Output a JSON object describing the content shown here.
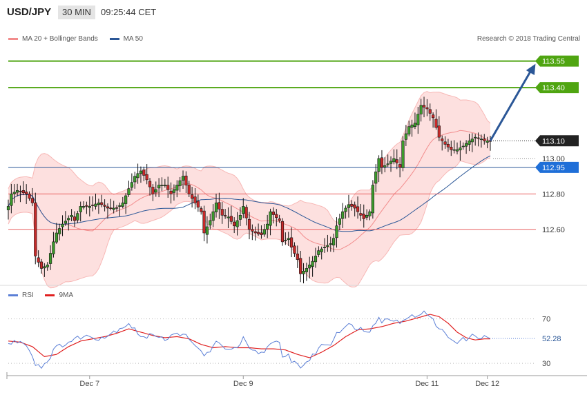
{
  "header": {
    "symbol": "USD/JPY",
    "timeframe": "30 MIN",
    "time": "09:25:44 CET"
  },
  "legend": [
    {
      "label": "MA 20 + Bollinger Bands",
      "color": "#f28c8c"
    },
    {
      "label": "MA 50",
      "color": "#2b5797"
    }
  ],
  "copyright": "Research © 2018 Trading Central",
  "chart_data": {
    "type": "candlestick",
    "ylim": [
      112.3,
      113.63
    ],
    "x_ticks": [
      {
        "label": "Dec 7",
        "index": 27
      },
      {
        "label": "Dec 9",
        "index": 78
      },
      {
        "label": "Dec 11",
        "index": 139
      },
      {
        "label": "Dec 12",
        "index": 159
      }
    ],
    "levels": [
      {
        "value": 113.55,
        "label": "113.55",
        "color": "#4fa511",
        "style": "target"
      },
      {
        "value": 113.4,
        "label": "113.40",
        "color": "#4fa511",
        "style": "target"
      },
      {
        "value": 113.1,
        "label": "113.10",
        "color": "#222222",
        "style": "current"
      },
      {
        "value": 113.0,
        "label": "113.00",
        "color": "#777777",
        "style": "plain"
      },
      {
        "value": 112.95,
        "label": "112.95",
        "color": "#1f6fd8",
        "style": "pivot"
      },
      {
        "value": 112.8,
        "label": "112.80",
        "color": "#e85c5c",
        "style": "support"
      },
      {
        "value": 112.6,
        "label": "112.60",
        "color": "#e85c5c",
        "style": "support"
      }
    ],
    "arrow": {
      "from_index": 160,
      "from_value": 113.1,
      "to_index": 175,
      "to_value": 113.55,
      "color": "#2b5797"
    },
    "key_closes": [
      [
        0,
        112.73
      ],
      [
        1,
        112.8
      ],
      [
        3,
        112.82
      ],
      [
        6,
        112.8
      ],
      [
        8,
        112.75
      ],
      [
        9,
        112.45
      ],
      [
        11,
        112.38
      ],
      [
        13,
        112.4
      ],
      [
        15,
        112.53
      ],
      [
        16,
        112.58
      ],
      [
        18,
        112.63
      ],
      [
        21,
        112.68
      ],
      [
        22,
        112.65
      ],
      [
        24,
        112.73
      ],
      [
        27,
        112.73
      ],
      [
        30,
        112.75
      ],
      [
        33,
        112.72
      ],
      [
        36,
        112.72
      ],
      [
        38,
        112.75
      ],
      [
        40,
        112.83
      ],
      [
        42,
        112.9
      ],
      [
        44,
        112.93
      ],
      [
        46,
        112.88
      ],
      [
        48,
        112.8
      ],
      [
        50,
        112.85
      ],
      [
        52,
        112.85
      ],
      [
        54,
        112.8
      ],
      [
        56,
        112.85
      ],
      [
        58,
        112.9
      ],
      [
        60,
        112.8
      ],
      [
        62,
        112.75
      ],
      [
        64,
        112.7
      ],
      [
        65,
        112.58
      ],
      [
        67,
        112.65
      ],
      [
        69,
        112.75
      ],
      [
        71,
        112.68
      ],
      [
        73,
        112.67
      ],
      [
        75,
        112.62
      ],
      [
        77,
        112.68
      ],
      [
        78,
        112.73
      ],
      [
        80,
        112.6
      ],
      [
        82,
        112.58
      ],
      [
        84,
        112.57
      ],
      [
        86,
        112.63
      ],
      [
        87,
        112.7
      ],
      [
        90,
        112.65
      ],
      [
        91,
        112.53
      ],
      [
        93,
        112.55
      ],
      [
        94,
        112.5
      ],
      [
        96,
        112.43
      ],
      [
        97,
        112.35
      ],
      [
        99,
        112.38
      ],
      [
        101,
        112.42
      ],
      [
        103,
        112.48
      ],
      [
        105,
        112.5
      ],
      [
        107,
        112.52
      ],
      [
        108,
        112.55
      ],
      [
        109,
        112.62
      ],
      [
        111,
        112.7
      ],
      [
        113,
        112.74
      ],
      [
        115,
        112.72
      ],
      [
        117,
        112.68
      ],
      [
        118,
        112.66
      ],
      [
        120,
        112.7
      ],
      [
        121,
        112.85
      ],
      [
        123,
        113.0
      ],
      [
        124,
        112.95
      ],
      [
        126,
        112.97
      ],
      [
        128,
        113.0
      ],
      [
        130,
        112.95
      ],
      [
        131,
        113.1
      ],
      [
        133,
        113.18
      ],
      [
        135,
        113.2
      ],
      [
        136,
        113.25
      ],
      [
        137,
        113.3
      ],
      [
        139,
        113.28
      ],
      [
        141,
        113.23
      ],
      [
        143,
        113.12
      ],
      [
        145,
        113.08
      ],
      [
        147,
        113.05
      ],
      [
        149,
        113.05
      ],
      [
        151,
        113.07
      ],
      [
        153,
        113.1
      ],
      [
        155,
        113.12
      ],
      [
        157,
        113.11
      ],
      [
        158,
        113.1
      ],
      [
        160,
        113.1
      ]
    ],
    "rsi": {
      "ylim": [
        22,
        84
      ],
      "levels": [
        70,
        30
      ],
      "current": 52.28,
      "current_label": "52.28",
      "series": [
        {
          "name": "RSI",
          "color": "#5b7fd6"
        },
        {
          "name": "9MA",
          "color": "#e02020"
        }
      ],
      "rsi_key": [
        [
          0,
          47
        ],
        [
          3,
          50
        ],
        [
          6,
          48
        ],
        [
          9,
          30
        ],
        [
          11,
          27
        ],
        [
          13,
          32
        ],
        [
          15,
          42
        ],
        [
          18,
          47
        ],
        [
          21,
          50
        ],
        [
          24,
          54
        ],
        [
          27,
          54
        ],
        [
          30,
          53
        ],
        [
          33,
          55
        ],
        [
          36,
          60
        ],
        [
          38,
          63
        ],
        [
          40,
          66
        ],
        [
          42,
          60
        ],
        [
          44,
          55
        ],
        [
          46,
          52
        ],
        [
          48,
          57
        ],
        [
          50,
          55
        ],
        [
          52,
          52
        ],
        [
          54,
          54
        ],
        [
          56,
          56
        ],
        [
          58,
          58
        ],
        [
          60,
          50
        ],
        [
          62,
          45
        ],
        [
          64,
          42
        ],
        [
          65,
          36
        ],
        [
          67,
          42
        ],
        [
          69,
          48
        ],
        [
          71,
          45
        ],
        [
          73,
          44
        ],
        [
          75,
          42
        ],
        [
          77,
          47
        ],
        [
          78,
          52
        ],
        [
          80,
          42
        ],
        [
          82,
          40
        ],
        [
          84,
          39
        ],
        [
          86,
          44
        ],
        [
          87,
          50
        ],
        [
          90,
          47
        ],
        [
          91,
          34
        ],
        [
          93,
          37
        ],
        [
          94,
          33
        ],
        [
          96,
          29
        ],
        [
          97,
          27
        ],
        [
          99,
          31
        ],
        [
          101,
          36
        ],
        [
          103,
          44
        ],
        [
          105,
          47
        ],
        [
          107,
          48
        ],
        [
          108,
          52
        ],
        [
          109,
          58
        ],
        [
          111,
          62
        ],
        [
          113,
          64
        ],
        [
          115,
          63
        ],
        [
          117,
          61
        ],
        [
          118,
          59
        ],
        [
          120,
          60
        ],
        [
          121,
          66
        ],
        [
          123,
          71
        ],
        [
          124,
          68
        ],
        [
          126,
          69
        ],
        [
          128,
          70
        ],
        [
          130,
          66
        ],
        [
          131,
          71
        ],
        [
          133,
          72
        ],
        [
          135,
          72
        ],
        [
          136,
          74
        ],
        [
          137,
          76
        ],
        [
          139,
          74
        ],
        [
          141,
          68
        ],
        [
          143,
          62
        ],
        [
          145,
          56
        ],
        [
          147,
          52
        ],
        [
          149,
          50
        ],
        [
          151,
          51
        ],
        [
          153,
          53
        ],
        [
          155,
          55
        ],
        [
          157,
          54
        ],
        [
          158,
          53
        ],
        [
          160,
          52.3
        ]
      ],
      "ma_key": [
        [
          0,
          50
        ],
        [
          4,
          49
        ],
        [
          8,
          45
        ],
        [
          12,
          36
        ],
        [
          16,
          38
        ],
        [
          20,
          45
        ],
        [
          24,
          50
        ],
        [
          28,
          52
        ],
        [
          32,
          54
        ],
        [
          36,
          57
        ],
        [
          40,
          61
        ],
        [
          44,
          58
        ],
        [
          48,
          55
        ],
        [
          52,
          53
        ],
        [
          56,
          54
        ],
        [
          60,
          52
        ],
        [
          64,
          47
        ],
        [
          68,
          44
        ],
        [
          72,
          45
        ],
        [
          76,
          44
        ],
        [
          80,
          44
        ],
        [
          84,
          43
        ],
        [
          88,
          43
        ],
        [
          92,
          42
        ],
        [
          96,
          38
        ],
        [
          100,
          35
        ],
        [
          104,
          40
        ],
        [
          108,
          46
        ],
        [
          112,
          54
        ],
        [
          116,
          60
        ],
        [
          120,
          61
        ],
        [
          124,
          63
        ],
        [
          128,
          66
        ],
        [
          132,
          68
        ],
        [
          136,
          71
        ],
        [
          140,
          74
        ],
        [
          143,
          72
        ],
        [
          146,
          66
        ],
        [
          149,
          58
        ],
        [
          152,
          53
        ],
        [
          155,
          51
        ],
        [
          158,
          52
        ],
        [
          160,
          52
        ]
      ]
    }
  },
  "rsi_legend": [
    {
      "label": "RSI",
      "color": "#5b7fd6"
    },
    {
      "label": "9MA",
      "color": "#e02020"
    }
  ]
}
